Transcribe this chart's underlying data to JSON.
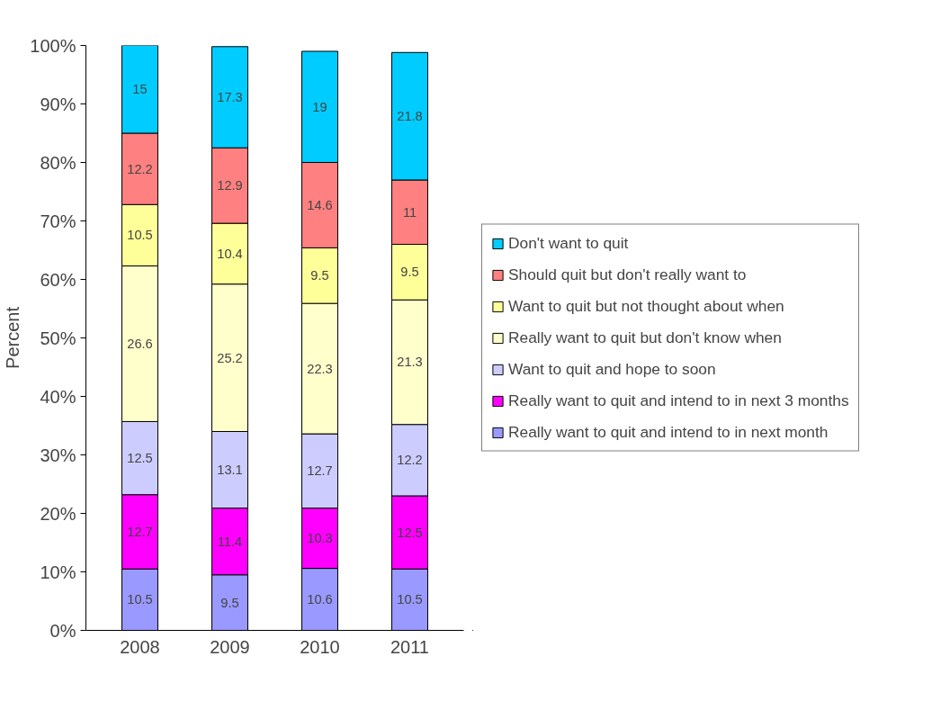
{
  "chart_data": {
    "type": "bar",
    "stacked": true,
    "ylabel": "Percent",
    "categories": [
      "2008",
      "2009",
      "2010",
      "2011"
    ],
    "series": [
      {
        "name": "Really want to quit and intend to in next month",
        "color": "#9999ff",
        "values": [
          10.5,
          9.5,
          10.6,
          10.5
        ]
      },
      {
        "name": "Really want to quit and intend to in next 3 months",
        "color": "#ff00ff",
        "values": [
          12.7,
          11.4,
          10.3,
          12.5
        ]
      },
      {
        "name": "Want to quit and hope to soon",
        "color": "#ccccff",
        "values": [
          12.5,
          13.1,
          12.7,
          12.2
        ]
      },
      {
        "name": "Really want to quit but don't know when",
        "color": "#ffffcc",
        "values": [
          26.6,
          25.2,
          22.3,
          21.3
        ]
      },
      {
        "name": "Want to quit but not thought about when",
        "color": "#ffff99",
        "values": [
          10.5,
          10.4,
          9.5,
          9.5
        ]
      },
      {
        "name": "Should quit but don't really want to",
        "color": "#ff8080",
        "values": [
          12.2,
          12.9,
          14.6,
          11
        ]
      },
      {
        "name": "Don't want to quit",
        "color": "#00ccff",
        "values": [
          15,
          17.3,
          19,
          21.8
        ]
      }
    ],
    "ylim": [
      0,
      100
    ],
    "yticks": [
      {
        "value": 0,
        "label": "0%"
      },
      {
        "value": 10,
        "label": "10%"
      },
      {
        "value": 20,
        "label": "20%"
      },
      {
        "value": 30,
        "label": "30%"
      },
      {
        "value": 40,
        "label": "40%"
      },
      {
        "value": 50,
        "label": "50%"
      },
      {
        "value": 60,
        "label": "60%"
      },
      {
        "value": 70,
        "label": "70%"
      },
      {
        "value": 80,
        "label": "80%"
      },
      {
        "value": 90,
        "label": "90%"
      },
      {
        "value": 100,
        "label": "100%"
      }
    ],
    "data_labels": true,
    "legend": "right",
    "grid": false
  }
}
